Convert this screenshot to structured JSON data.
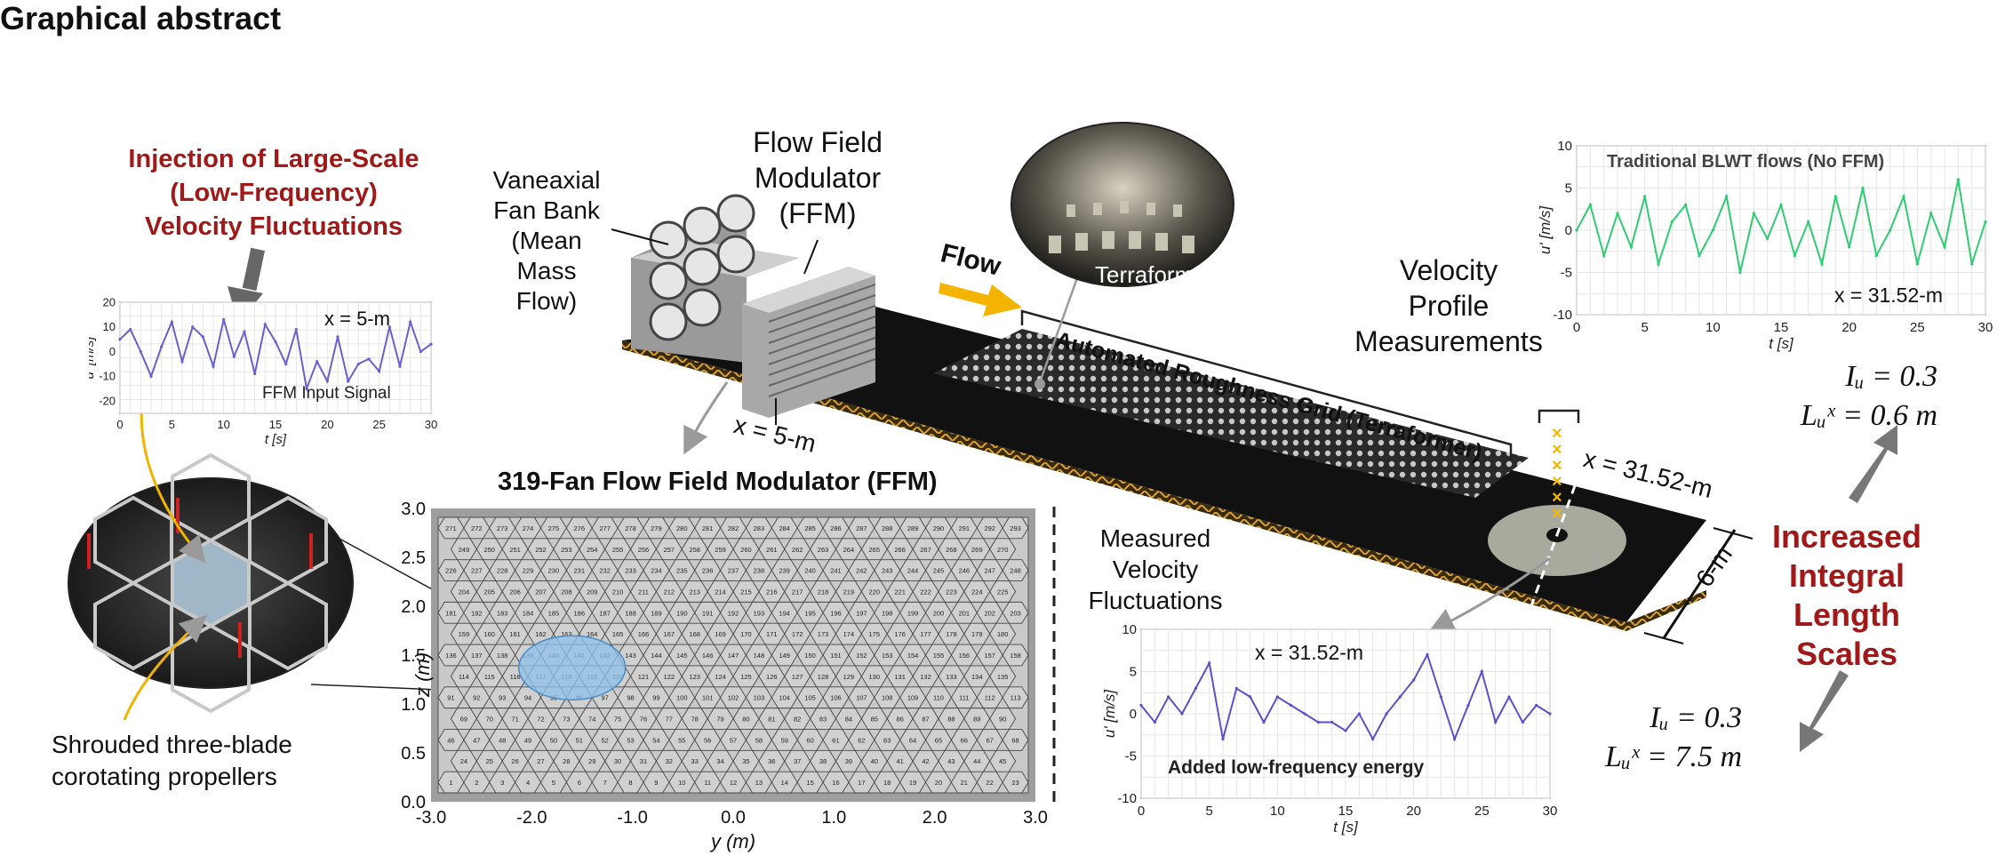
{
  "header": {
    "title": "Graphical abstract"
  },
  "injection_text": [
    "Injection of Large-Scale",
    "(Low-Frequency)",
    "Velocity Fluctuations"
  ],
  "fan_bank_label": [
    "Vaneaxial",
    "Fan Bank",
    "(Mean",
    "Mass",
    "Flow)"
  ],
  "ffm_label": [
    "Flow Field",
    "Modulator",
    "(FFM)"
  ],
  "flow_label": "Flow",
  "terraformer_label": "Terraformer",
  "roughness_label": "Automated Roughness Grid (Terraformer)",
  "velocity_profile_label": [
    "Velocity",
    "Profile",
    "Measurements"
  ],
  "x5_label": "x = 5-m",
  "x3152_label": "x = 31.52-m",
  "width_label": "6-m",
  "ffm_map": {
    "title": "319-Fan Flow Field Modulator (FFM)",
    "ylabel": "z (m)",
    "xlabel": "y (m)",
    "xticks": [
      "-3.0",
      "-2.0",
      "-1.0",
      "0.0",
      "1.0",
      "2.0",
      "3.0"
    ],
    "yticks": [
      "0.0",
      "0.5",
      "1.0",
      "1.5",
      "2.0",
      "2.5",
      "3.0"
    ]
  },
  "shrouded_label": [
    "Shrouded three-blade",
    "corotating propellers"
  ],
  "measured_label": [
    "Measured",
    "Velocity",
    "Fluctuations"
  ],
  "increased_label": [
    "Increased",
    "Integral",
    "Length",
    "Scales"
  ],
  "stats_top": {
    "iu": "Iᵤ = 0.3",
    "lux": "Lᵤˣ = 0.6 m"
  },
  "stats_bottom": {
    "iu": "Iᵤ = 0.3",
    "lux": "Lᵤˣ = 7.5 m"
  },
  "chart_data": [
    {
      "type": "line",
      "title": "",
      "annotation": "x = 5-m",
      "caption": "FFM Input Signal",
      "xlabel": "t [s]",
      "ylabel": "u' [m/s]",
      "xlim": [
        0,
        30
      ],
      "ylim": [
        -25,
        20
      ],
      "xticks": [
        0,
        5,
        10,
        15,
        20,
        25,
        30
      ],
      "yticks": [
        -20,
        -10,
        0,
        10,
        20
      ],
      "color": "#6b5fd0",
      "grid": true,
      "x": [
        0,
        1,
        2,
        3,
        4,
        5,
        6,
        7,
        8,
        9,
        10,
        11,
        12,
        13,
        14,
        15,
        16,
        17,
        18,
        19,
        20,
        21,
        22,
        23,
        24,
        25,
        26,
        27,
        28,
        29,
        30
      ],
      "y": [
        5,
        9,
        0,
        -10,
        2,
        12,
        -4,
        10,
        6,
        -6,
        13,
        -2,
        8,
        -9,
        11,
        4,
        -5,
        9,
        -15,
        -4,
        -12,
        6,
        -12,
        -5,
        -3,
        -8,
        10,
        -6,
        12,
        0,
        3
      ]
    },
    {
      "type": "line",
      "title": "Traditional BLWT flows (No FFM)",
      "annotation": "x = 31.52-m",
      "xlabel": "t [s]",
      "ylabel": "u' [m/s]",
      "xlim": [
        0,
        30
      ],
      "ylim": [
        -10,
        10
      ],
      "xticks": [
        0,
        5,
        10,
        15,
        20,
        25,
        30
      ],
      "yticks": [
        -10,
        -5,
        0,
        5,
        10
      ],
      "color": "#2ecc71",
      "grid": true,
      "x": [
        0,
        1,
        2,
        3,
        4,
        5,
        6,
        7,
        8,
        9,
        10,
        11,
        12,
        13,
        14,
        15,
        16,
        17,
        18,
        19,
        20,
        21,
        22,
        23,
        24,
        25,
        26,
        27,
        28,
        29,
        30
      ],
      "y": [
        0,
        3,
        -3,
        2,
        -2,
        4,
        -4,
        1,
        3,
        -3,
        0,
        4,
        -5,
        2,
        -1,
        3,
        -3,
        1,
        -4,
        4,
        -2,
        5,
        -3,
        0,
        4,
        -4,
        2,
        -2,
        6,
        -4,
        1
      ]
    },
    {
      "type": "line",
      "title": "",
      "annotation": "x = 31.52-m",
      "caption": "Added low-frequency energy",
      "xlabel": "t [s]",
      "ylabel": "u' [m/s]",
      "xlim": [
        0,
        30
      ],
      "ylim": [
        -10,
        10
      ],
      "xticks": [
        0,
        5,
        10,
        15,
        20,
        25,
        30
      ],
      "yticks": [
        -10,
        -5,
        0,
        5,
        10
      ],
      "color": "#5a4fcf",
      "grid": true,
      "x": [
        0,
        1,
        2,
        3,
        4,
        5,
        6,
        7,
        8,
        9,
        10,
        11,
        12,
        13,
        14,
        15,
        16,
        17,
        18,
        19,
        20,
        21,
        22,
        23,
        24,
        25,
        26,
        27,
        28,
        29,
        30
      ],
      "y": [
        1,
        -1,
        2,
        0,
        3,
        6,
        -3,
        3,
        2,
        -1,
        2,
        1,
        0,
        -1,
        -1,
        -2,
        0,
        -3,
        0,
        2,
        4,
        7,
        2,
        -3,
        1,
        5,
        -1,
        2,
        -1,
        1,
        0
      ]
    }
  ]
}
